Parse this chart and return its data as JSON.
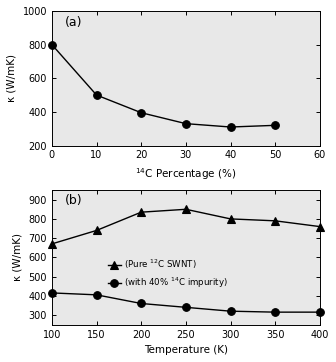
{
  "panel_a": {
    "x": [
      0,
      10,
      20,
      30,
      40,
      50
    ],
    "y": [
      800,
      500,
      395,
      330,
      310,
      320
    ],
    "xlabel": "$^{14}$C Percentage (%)",
    "ylabel": "κ (W/mK)",
    "xlim": [
      0,
      60
    ],
    "ylim": [
      200,
      1000
    ],
    "xticks": [
      0,
      10,
      20,
      30,
      40,
      50,
      60
    ],
    "yticks": [
      200,
      400,
      600,
      800,
      1000
    ],
    "label": "(a)"
  },
  "panel_b": {
    "x_triangle": [
      100,
      150,
      200,
      250,
      300,
      350,
      400
    ],
    "y_triangle": [
      670,
      740,
      835,
      850,
      800,
      790,
      760
    ],
    "x_circle": [
      100,
      150,
      200,
      250,
      300,
      350,
      400
    ],
    "y_circle": [
      415,
      405,
      360,
      340,
      320,
      315,
      315
    ],
    "xlabel": "Temperature (K)",
    "ylabel": "κ (W/mK)",
    "xlim": [
      100,
      400
    ],
    "ylim": [
      250,
      950
    ],
    "xticks": [
      100,
      150,
      200,
      250,
      300,
      350,
      400
    ],
    "yticks": [
      300,
      400,
      500,
      600,
      700,
      800,
      900
    ],
    "label": "(b)",
    "legend_triangle": "(Pure $^{12}$C SWNT)",
    "legend_circle": "(with 40% $^{14}$C impurity)"
  },
  "line_color": "black",
  "marker_circle": "o",
  "marker_triangle": "^",
  "markersize": 5.5,
  "linewidth": 1.0,
  "markerfacecolor": "black",
  "bg_color": "#e8e8e8"
}
